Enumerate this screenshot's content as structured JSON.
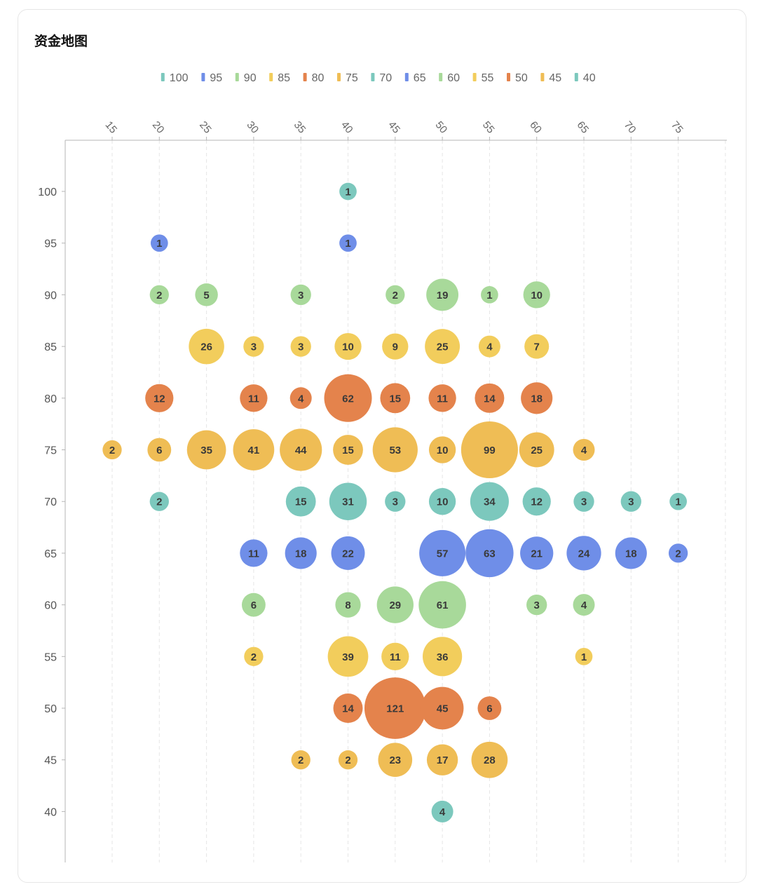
{
  "card": {
    "title": "资金地图"
  },
  "chart_data": {
    "type": "scatter",
    "bubble": true,
    "title": "",
    "xlabel": "",
    "ylabel": "",
    "x_axis_position": "top",
    "x_ticks": [
      15,
      20,
      25,
      30,
      35,
      40,
      45,
      50,
      55,
      60,
      65,
      70,
      75
    ],
    "y_ticks": [
      100,
      95,
      90,
      85,
      80,
      75,
      70,
      65,
      60,
      55,
      50,
      45,
      40
    ],
    "xlim": [
      10,
      80
    ],
    "ylim": [
      35,
      105
    ],
    "grid": "vertical-dashed",
    "legend_position": "top",
    "series": [
      {
        "name": "100",
        "color": "#7cc8bd",
        "points": [
          [
            40,
            100,
            1
          ]
        ]
      },
      {
        "name": "95",
        "color": "#6f8ee8",
        "points": [
          [
            20,
            95,
            1
          ],
          [
            40,
            95,
            1
          ]
        ]
      },
      {
        "name": "90",
        "color": "#a8d99a",
        "points": [
          [
            20,
            90,
            2
          ],
          [
            25,
            90,
            5
          ],
          [
            35,
            90,
            3
          ],
          [
            45,
            90,
            2
          ],
          [
            50,
            90,
            19
          ],
          [
            55,
            90,
            1
          ],
          [
            60,
            90,
            10
          ]
        ]
      },
      {
        "name": "85",
        "color": "#f2cd5c",
        "points": [
          [
            25,
            85,
            26
          ],
          [
            30,
            85,
            3
          ],
          [
            35,
            85,
            3
          ],
          [
            40,
            85,
            10
          ],
          [
            45,
            85,
            9
          ],
          [
            50,
            85,
            25
          ],
          [
            55,
            85,
            4
          ],
          [
            60,
            85,
            7
          ]
        ]
      },
      {
        "name": "80",
        "color": "#e4834c",
        "points": [
          [
            20,
            80,
            12
          ],
          [
            30,
            80,
            11
          ],
          [
            35,
            80,
            4
          ],
          [
            40,
            80,
            62
          ],
          [
            45,
            80,
            15
          ],
          [
            50,
            80,
            11
          ],
          [
            55,
            80,
            14
          ],
          [
            60,
            80,
            18
          ]
        ]
      },
      {
        "name": "75",
        "color": "#efbd55",
        "points": [
          [
            15,
            75,
            2
          ],
          [
            20,
            75,
            6
          ],
          [
            25,
            75,
            35
          ],
          [
            30,
            75,
            41
          ],
          [
            35,
            75,
            44
          ],
          [
            40,
            75,
            15
          ],
          [
            45,
            75,
            53
          ],
          [
            50,
            75,
            10
          ],
          [
            55,
            75,
            99
          ],
          [
            60,
            75,
            25
          ],
          [
            65,
            75,
            4
          ]
        ]
      },
      {
        "name": "70",
        "color": "#7cc8bd",
        "points": [
          [
            20,
            70,
            2
          ],
          [
            35,
            70,
            15
          ],
          [
            40,
            70,
            31
          ],
          [
            45,
            70,
            3
          ],
          [
            50,
            70,
            10
          ],
          [
            55,
            70,
            34
          ],
          [
            60,
            70,
            12
          ],
          [
            65,
            70,
            3
          ],
          [
            70,
            70,
            3
          ],
          [
            75,
            70,
            1
          ]
        ]
      },
      {
        "name": "65",
        "color": "#6f8ee8",
        "points": [
          [
            30,
            65,
            11
          ],
          [
            35,
            65,
            18
          ],
          [
            40,
            65,
            22
          ],
          [
            50,
            65,
            57
          ],
          [
            55,
            65,
            63
          ],
          [
            60,
            65,
            21
          ],
          [
            65,
            65,
            24
          ],
          [
            70,
            65,
            18
          ],
          [
            75,
            65,
            2
          ]
        ]
      },
      {
        "name": "60",
        "color": "#a8d99a",
        "points": [
          [
            30,
            60,
            6
          ],
          [
            40,
            60,
            8
          ],
          [
            45,
            60,
            29
          ],
          [
            50,
            60,
            61
          ],
          [
            60,
            60,
            3
          ],
          [
            65,
            60,
            4
          ]
        ]
      },
      {
        "name": "55",
        "color": "#f2cd5c",
        "points": [
          [
            30,
            55,
            2
          ],
          [
            40,
            55,
            39
          ],
          [
            45,
            55,
            11
          ],
          [
            50,
            55,
            36
          ],
          [
            65,
            55,
            1
          ]
        ]
      },
      {
        "name": "50",
        "color": "#e4834c",
        "points": [
          [
            40,
            50,
            14
          ],
          [
            45,
            50,
            121
          ],
          [
            50,
            50,
            45
          ],
          [
            55,
            50,
            6
          ]
        ]
      },
      {
        "name": "45",
        "color": "#efbd55",
        "points": [
          [
            35,
            45,
            2
          ],
          [
            40,
            45,
            2
          ],
          [
            45,
            45,
            23
          ],
          [
            50,
            45,
            17
          ],
          [
            55,
            45,
            28
          ]
        ]
      },
      {
        "name": "40",
        "color": "#7cc8bd",
        "points": [
          [
            50,
            40,
            4
          ]
        ]
      }
    ]
  }
}
